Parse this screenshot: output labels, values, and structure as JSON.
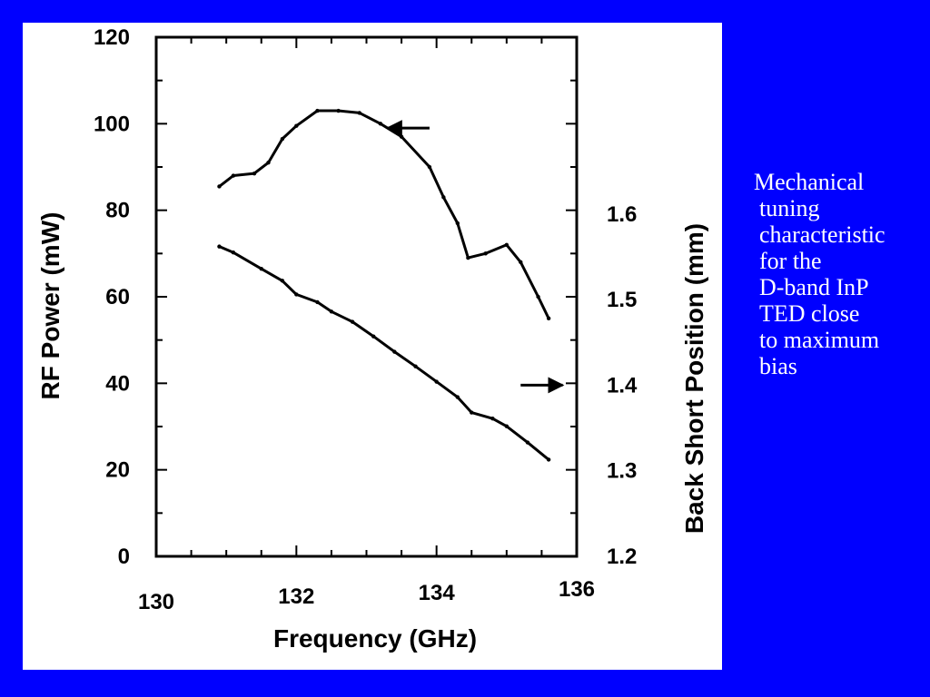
{
  "caption": {
    "lines": [
      "Mechanical",
      "tuning",
      "characteristic",
      "for the",
      "D-band InP",
      "TED close",
      "to maximum",
      "bias"
    ]
  },
  "chart_data": {
    "type": "line",
    "title": "",
    "xlabel": "Frequency  (GHz)",
    "ylabel": "RF Power  (mW)",
    "y2label": "Back Short Position  (mm)",
    "xlim": [
      130,
      136
    ],
    "ylim": [
      0,
      120
    ],
    "y2lim": [
      1.2,
      1.8
    ],
    "x_ticks": [
      "130",
      "132",
      "134",
      "136"
    ],
    "y_ticks": [
      "0",
      "20",
      "40",
      "60",
      "80",
      "100",
      "120"
    ],
    "y2_ticks": [
      "1.2",
      "1.3",
      "1.4",
      "1.5",
      "1.6"
    ],
    "grid": false,
    "series": [
      {
        "axis": "left",
        "x": [
          130.9,
          131.1,
          131.4,
          131.6,
          131.8,
          132.0,
          132.3,
          132.6,
          132.9,
          133.2,
          133.5,
          133.9,
          134.1,
          134.3,
          134.45,
          134.7,
          135.0,
          135.2,
          135.45,
          135.6
        ],
        "y": [
          85.5,
          88,
          88.5,
          91,
          96.5,
          99.5,
          103,
          103,
          102.5,
          100,
          97,
          90,
          83,
          77,
          69,
          70,
          72,
          68,
          60,
          55
        ]
      },
      {
        "axis": "right",
        "x": [
          130.9,
          131.1,
          131.5,
          131.8,
          132.0,
          132.3,
          132.5,
          132.8,
          133.1,
          133.4,
          133.7,
          134.0,
          134.3,
          134.5,
          134.8,
          135.0,
          135.3,
          135.6
        ],
        "y": [
          1.562,
          1.555,
          1.536,
          1.522,
          1.506,
          1.497,
          1.486,
          1.474,
          1.457,
          1.439,
          1.422,
          1.404,
          1.386,
          1.368,
          1.361,
          1.352,
          1.333,
          1.313
        ]
      }
    ],
    "annotations": [
      {
        "type": "arrow",
        "direction": "left",
        "target_axis": "left",
        "x_from": 133.9,
        "x_to": 133.3,
        "y": 99
      },
      {
        "type": "arrow",
        "direction": "right",
        "target_axis": "right",
        "x_from": 135.2,
        "x_to": 135.8,
        "y": 1.4
      }
    ]
  }
}
